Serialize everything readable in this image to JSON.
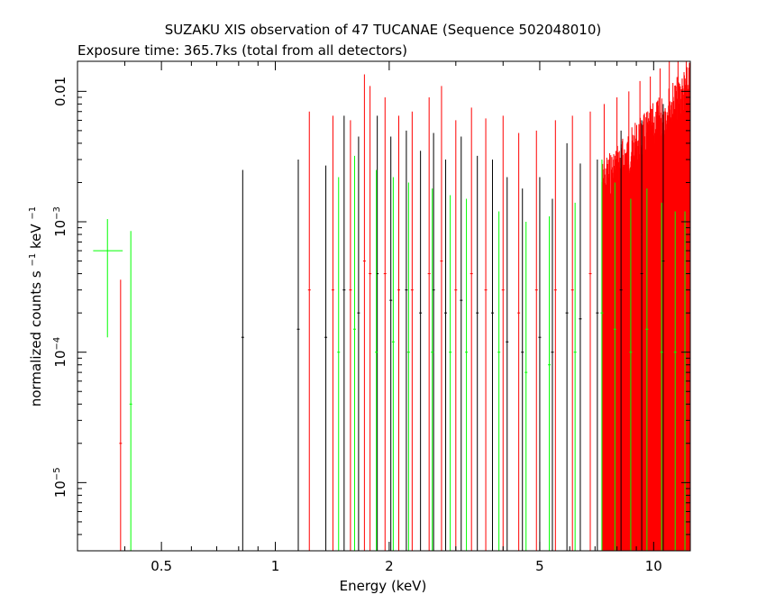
{
  "chart_data": {
    "type": "scatter",
    "title": "SUZAKU XIS observation of 47 TUCANAE (Sequence 502048010)",
    "subtitle": "Exposure time: 365.7ks (total from all detectors)",
    "xlabel": "Energy (keV)",
    "ylabel": {
      "parts": [
        "normalized counts s",
        "−1",
        " keV",
        "−1"
      ]
    },
    "x_scale": "log",
    "y_scale": "log",
    "xlim": [
      0.3,
      12.5
    ],
    "ylim": [
      3e-06,
      0.017
    ],
    "x_ticks": [
      {
        "value": 0.5,
        "label": "0.5"
      },
      {
        "value": 1,
        "label": "1"
      },
      {
        "value": 2,
        "label": "2"
      },
      {
        "value": 5,
        "label": "5"
      },
      {
        "value": 10,
        "label": "10"
      }
    ],
    "y_ticks": [
      {
        "value": 0.01,
        "label": "0.01"
      },
      {
        "value": 0.001,
        "base": "10",
        "exp": "−3"
      },
      {
        "value": 0.0001,
        "base": "10",
        "exp": "−4"
      },
      {
        "value": 1e-05,
        "base": "10",
        "exp": "−5"
      }
    ],
    "colors": {
      "black": "#000000",
      "red": "#ff0000",
      "green": "#00ff00",
      "frame": "#000000"
    },
    "series": [
      {
        "color": "black",
        "points": [
          {
            "x": 0.82,
            "y": 0.00013,
            "y_lo": 3e-06,
            "y_hi": 0.0025
          },
          {
            "x": 1.15,
            "y": 0.00015,
            "y_lo": 3e-06,
            "y_hi": 0.003
          },
          {
            "x": 1.36,
            "y": 0.00013,
            "y_lo": 3e-06,
            "y_hi": 0.0027
          },
          {
            "x": 1.52,
            "y": 0.0003,
            "y_lo": 3e-06,
            "y_hi": 0.0065
          },
          {
            "x": 1.66,
            "y": 0.0002,
            "y_lo": 3e-06,
            "y_hi": 0.0045
          },
          {
            "x": 1.86,
            "y": 0.0004,
            "y_lo": 3e-06,
            "y_hi": 0.0065
          },
          {
            "x": 2.02,
            "y": 0.00025,
            "y_lo": 3e-06,
            "y_hi": 0.0045
          },
          {
            "x": 2.22,
            "y": 0.0003,
            "y_lo": 3e-06,
            "y_hi": 0.005
          },
          {
            "x": 2.42,
            "y": 0.0002,
            "y_lo": 3e-06,
            "y_hi": 0.0035
          },
          {
            "x": 2.62,
            "y": 0.0003,
            "y_lo": 3e-06,
            "y_hi": 0.0048
          },
          {
            "x": 2.82,
            "y": 0.0002,
            "y_lo": 3e-06,
            "y_hi": 0.003
          },
          {
            "x": 3.1,
            "y": 0.00025,
            "y_lo": 3e-06,
            "y_hi": 0.0045
          },
          {
            "x": 3.42,
            "y": 0.0002,
            "y_lo": 3e-06,
            "y_hi": 0.0032
          },
          {
            "x": 3.75,
            "y": 0.0002,
            "y_lo": 3e-06,
            "y_hi": 0.003
          },
          {
            "x": 4.1,
            "y": 0.00012,
            "y_lo": 3e-06,
            "y_hi": 0.0022
          },
          {
            "x": 4.5,
            "y": 0.0001,
            "y_lo": 3e-06,
            "y_hi": 0.0018
          },
          {
            "x": 5.0,
            "y": 0.00013,
            "y_lo": 3e-06,
            "y_hi": 0.0022
          },
          {
            "x": 5.4,
            "y": 0.0001,
            "y_lo": 3e-06,
            "y_hi": 0.0015
          },
          {
            "x": 5.9,
            "y": 0.0002,
            "y_lo": 3e-06,
            "y_hi": 0.004
          },
          {
            "x": 6.4,
            "y": 0.00018,
            "y_lo": 3e-06,
            "y_hi": 0.0028
          },
          {
            "x": 7.1,
            "y": 0.0002,
            "y_lo": 3e-06,
            "y_hi": 0.003
          },
          {
            "x": 8.2,
            "y": 0.0003,
            "y_lo": 3e-06,
            "y_hi": 0.005
          },
          {
            "x": 9.3,
            "y": 0.0004,
            "y_lo": 3e-06,
            "y_hi": 0.006
          },
          {
            "x": 10.6,
            "y": 0.0005,
            "y_lo": 3e-06,
            "y_hi": 0.008
          }
        ]
      },
      {
        "color": "red",
        "points": [
          {
            "x": 0.39,
            "y": 2e-05,
            "y_lo": 3e-06,
            "y_hi": 0.00036
          },
          {
            "x": 1.23,
            "y": 0.0003,
            "y_lo": 3e-06,
            "y_hi": 0.007
          },
          {
            "x": 1.42,
            "y": 0.0003,
            "y_lo": 3e-06,
            "y_hi": 0.0065
          },
          {
            "x": 1.58,
            "y": 0.0003,
            "y_lo": 3e-06,
            "y_hi": 0.006
          },
          {
            "x": 1.72,
            "y": 0.0005,
            "y_lo": 3e-06,
            "y_hi": 0.0135
          },
          {
            "x": 1.78,
            "y": 0.0004,
            "y_lo": 3e-06,
            "y_hi": 0.011
          },
          {
            "x": 1.95,
            "y": 0.0004,
            "y_lo": 3e-06,
            "y_hi": 0.009
          },
          {
            "x": 2.12,
            "y": 0.0003,
            "y_lo": 3e-06,
            "y_hi": 0.0065
          },
          {
            "x": 2.3,
            "y": 0.0003,
            "y_lo": 3e-06,
            "y_hi": 0.007
          },
          {
            "x": 2.55,
            "y": 0.0004,
            "y_lo": 3e-06,
            "y_hi": 0.009
          },
          {
            "x": 2.75,
            "y": 0.0005,
            "y_lo": 3e-06,
            "y_hi": 0.011
          },
          {
            "x": 3.0,
            "y": 0.0003,
            "y_lo": 3e-06,
            "y_hi": 0.006
          },
          {
            "x": 3.3,
            "y": 0.0004,
            "y_lo": 3e-06,
            "y_hi": 0.0075
          },
          {
            "x": 3.6,
            "y": 0.0003,
            "y_lo": 3e-06,
            "y_hi": 0.0062
          },
          {
            "x": 4.0,
            "y": 0.0003,
            "y_lo": 3e-06,
            "y_hi": 0.0065
          },
          {
            "x": 4.4,
            "y": 0.0002,
            "y_lo": 3e-06,
            "y_hi": 0.0048
          },
          {
            "x": 4.9,
            "y": 0.0003,
            "y_lo": 3e-06,
            "y_hi": 0.005
          },
          {
            "x": 5.5,
            "y": 0.0003,
            "y_lo": 3e-06,
            "y_hi": 0.006
          },
          {
            "x": 6.1,
            "y": 0.0003,
            "y_lo": 3e-06,
            "y_hi": 0.0065
          },
          {
            "x": 6.8,
            "y": 0.0004,
            "y_lo": 3e-06,
            "y_hi": 0.007
          },
          {
            "x": 7.4,
            "y": 0.0005,
            "y_lo": 3e-06,
            "y_hi": 0.008
          },
          {
            "x": 8.0,
            "y": 0.0006,
            "y_lo": 3e-06,
            "y_hi": 0.009
          },
          {
            "x": 8.6,
            "y": 0.0007,
            "y_lo": 3e-06,
            "y_hi": 0.01
          },
          {
            "x": 9.2,
            "y": 0.0008,
            "y_lo": 3e-06,
            "y_hi": 0.012
          },
          {
            "x": 9.8,
            "y": 0.0009,
            "y_lo": 3e-06,
            "y_hi": 0.013
          },
          {
            "x": 10.4,
            "y": 0.001,
            "y_lo": 3e-06,
            "y_hi": 0.015
          },
          {
            "x": 11.0,
            "y": 0.0011,
            "y_lo": 3e-06,
            "y_hi": 0.017
          },
          {
            "x": 11.6,
            "y": 0.0012,
            "y_lo": 3e-06,
            "y_hi": 0.017
          },
          {
            "x": 12.2,
            "y": 0.0012,
            "y_lo": 3e-06,
            "y_hi": 0.017
          }
        ]
      },
      {
        "color": "green",
        "points": [
          {
            "x": 0.36,
            "y": 0.0006,
            "y_lo": 0.00013,
            "y_hi": 0.00105,
            "x_lo": 0.33,
            "x_hi": 0.395
          },
          {
            "x": 0.415,
            "y": 4e-05,
            "y_lo": 3e-06,
            "y_hi": 0.00085
          },
          {
            "x": 1.47,
            "y": 0.0001,
            "y_lo": 3e-06,
            "y_hi": 0.0022
          },
          {
            "x": 1.62,
            "y": 0.00015,
            "y_lo": 3e-06,
            "y_hi": 0.0032
          },
          {
            "x": 1.85,
            "y": 0.0001,
            "y_lo": 3e-06,
            "y_hi": 0.0025
          },
          {
            "x": 2.05,
            "y": 0.00012,
            "y_lo": 3e-06,
            "y_hi": 0.0022
          },
          {
            "x": 2.25,
            "y": 0.0001,
            "y_lo": 3e-06,
            "y_hi": 0.002
          },
          {
            "x": 2.6,
            "y": 0.0001,
            "y_lo": 3e-06,
            "y_hi": 0.0018
          },
          {
            "x": 2.9,
            "y": 0.0001,
            "y_lo": 3e-06,
            "y_hi": 0.0016
          },
          {
            "x": 3.2,
            "y": 0.0001,
            "y_lo": 3e-06,
            "y_hi": 0.0015
          },
          {
            "x": 3.9,
            "y": 0.0001,
            "y_lo": 3e-06,
            "y_hi": 0.0012
          },
          {
            "x": 4.6,
            "y": 7e-05,
            "y_lo": 3e-06,
            "y_hi": 0.001
          },
          {
            "x": 5.3,
            "y": 8e-05,
            "y_lo": 3e-06,
            "y_hi": 0.0011
          },
          {
            "x": 6.2,
            "y": 0.0001,
            "y_lo": 3e-06,
            "y_hi": 0.0014
          },
          {
            "x": 7.3,
            "y": 0.0002,
            "y_lo": 3e-06,
            "y_hi": 0.003
          },
          {
            "x": 7.9,
            "y": 0.00015,
            "y_lo": 3e-06,
            "y_hi": 0.002
          },
          {
            "x": 8.7,
            "y": 0.0001,
            "y_lo": 3e-06,
            "y_hi": 0.0015
          },
          {
            "x": 9.6,
            "y": 0.00015,
            "y_lo": 3e-06,
            "y_hi": 0.0018
          },
          {
            "x": 10.5,
            "y": 0.0001,
            "y_lo": 3e-06,
            "y_hi": 0.0014
          },
          {
            "x": 11.4,
            "y": 0.0001,
            "y_lo": 3e-06,
            "y_hi": 0.0012
          },
          {
            "x": 12.1,
            "y": 0.0001,
            "y_lo": 3e-06,
            "y_hi": 0.0012
          }
        ]
      }
    ],
    "dense_band": {
      "color": "red",
      "x_from": 7.3,
      "x_to": 12.5,
      "y_lo": 3e-06,
      "y_hi_start": 0.003,
      "y_hi_end": 0.017
    }
  }
}
